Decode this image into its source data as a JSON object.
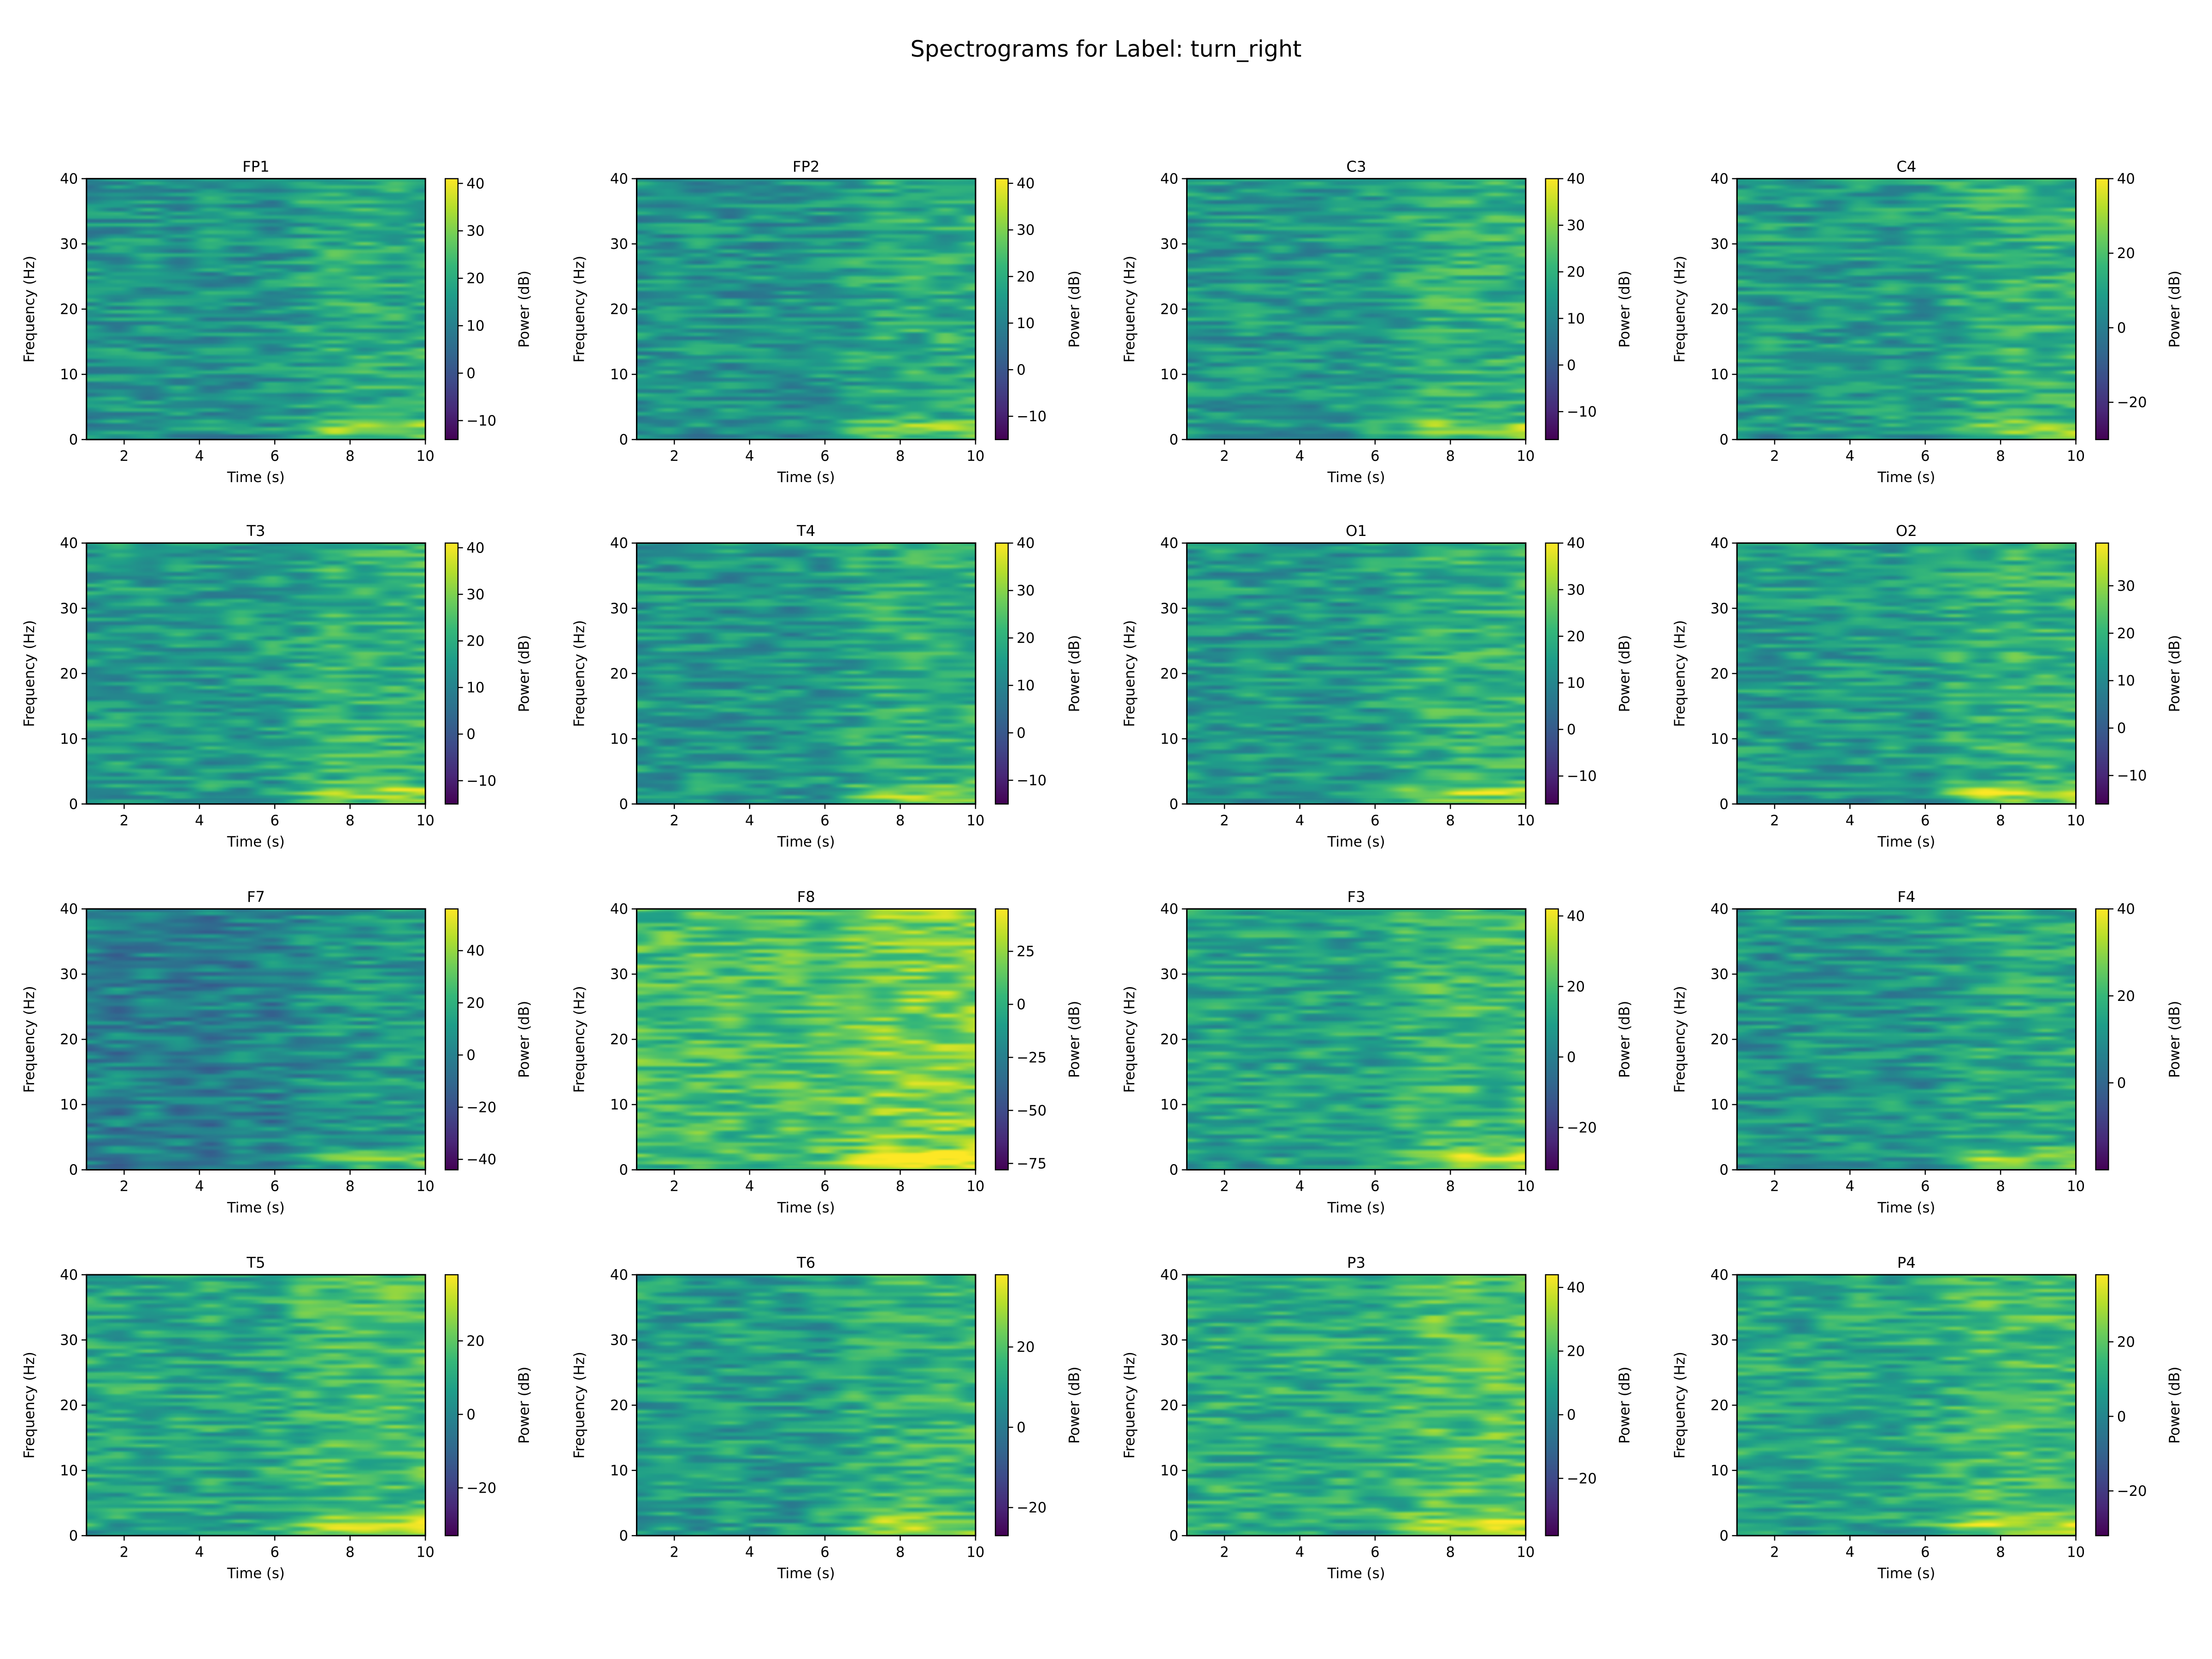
{
  "figure": {
    "title": "Spectrograms for Label: turn_right"
  },
  "colormap": "viridis",
  "chart_data": [
    {
      "type": "heatmap",
      "title": "FP1",
      "xlabel": "Time (s)",
      "ylabel": "Frequency (Hz)",
      "xlim": [
        1,
        10
      ],
      "ylim": [
        0,
        40
      ],
      "xticks": [
        "2",
        "4",
        "6",
        "8",
        "10"
      ],
      "yticks": [
        "0",
        "10",
        "20",
        "30",
        "40"
      ],
      "colorbar": {
        "label": "Power (dB)",
        "ticks": [
          "−10",
          "0",
          "10",
          "20",
          "30",
          "40"
        ],
        "range": [
          -14,
          41
        ]
      }
    },
    {
      "type": "heatmap",
      "title": "FP2",
      "xlabel": "Time (s)",
      "ylabel": "Frequency (Hz)",
      "xlim": [
        1,
        10
      ],
      "ylim": [
        0,
        40
      ],
      "xticks": [
        "2",
        "4",
        "6",
        "8",
        "10"
      ],
      "yticks": [
        "0",
        "10",
        "20",
        "30",
        "40"
      ],
      "colorbar": {
        "label": "Power (dB)",
        "ticks": [
          "−10",
          "0",
          "10",
          "20",
          "30",
          "40"
        ],
        "range": [
          -15,
          41
        ]
      }
    },
    {
      "type": "heatmap",
      "title": "C3",
      "xlabel": "Time (s)",
      "ylabel": "Frequency (Hz)",
      "xlim": [
        1,
        10
      ],
      "ylim": [
        0,
        40
      ],
      "xticks": [
        "2",
        "4",
        "6",
        "8",
        "10"
      ],
      "yticks": [
        "0",
        "10",
        "20",
        "30",
        "40"
      ],
      "colorbar": {
        "label": "Power (dB)",
        "ticks": [
          "−10",
          "0",
          "10",
          "20",
          "30",
          "40"
        ],
        "range": [
          -16,
          40
        ]
      }
    },
    {
      "type": "heatmap",
      "title": "C4",
      "xlabel": "Time (s)",
      "ylabel": "Frequency (Hz)",
      "xlim": [
        1,
        10
      ],
      "ylim": [
        0,
        40
      ],
      "xticks": [
        "2",
        "4",
        "6",
        "8",
        "10"
      ],
      "yticks": [
        "0",
        "10",
        "20",
        "30",
        "40"
      ],
      "colorbar": {
        "label": "Power (dB)",
        "ticks": [
          "−20",
          "0",
          "20",
          "40"
        ],
        "range": [
          -30,
          40
        ]
      }
    },
    {
      "type": "heatmap",
      "title": "T3",
      "xlabel": "Time (s)",
      "ylabel": "Frequency (Hz)",
      "xlim": [
        1,
        10
      ],
      "ylim": [
        0,
        40
      ],
      "xticks": [
        "2",
        "4",
        "6",
        "8",
        "10"
      ],
      "yticks": [
        "0",
        "10",
        "20",
        "30",
        "40"
      ],
      "colorbar": {
        "label": "Power (dB)",
        "ticks": [
          "−10",
          "0",
          "10",
          "20",
          "30",
          "40"
        ],
        "range": [
          -15,
          41
        ]
      }
    },
    {
      "type": "heatmap",
      "title": "T4",
      "xlabel": "Time (s)",
      "ylabel": "Frequency (Hz)",
      "xlim": [
        1,
        10
      ],
      "ylim": [
        0,
        40
      ],
      "xticks": [
        "2",
        "4",
        "6",
        "8",
        "10"
      ],
      "yticks": [
        "0",
        "10",
        "20",
        "30",
        "40"
      ],
      "colorbar": {
        "label": "Power (dB)",
        "ticks": [
          "−10",
          "0",
          "10",
          "20",
          "30",
          "40"
        ],
        "range": [
          -15,
          40
        ]
      }
    },
    {
      "type": "heatmap",
      "title": "O1",
      "xlabel": "Time (s)",
      "ylabel": "Frequency (Hz)",
      "xlim": [
        1,
        10
      ],
      "ylim": [
        0,
        40
      ],
      "xticks": [
        "2",
        "4",
        "6",
        "8",
        "10"
      ],
      "yticks": [
        "0",
        "10",
        "20",
        "30",
        "40"
      ],
      "colorbar": {
        "label": "Power (dB)",
        "ticks": [
          "−10",
          "0",
          "10",
          "20",
          "30",
          "40"
        ],
        "range": [
          -16,
          40
        ]
      }
    },
    {
      "type": "heatmap",
      "title": "O2",
      "xlabel": "Time (s)",
      "ylabel": "Frequency (Hz)",
      "xlim": [
        1,
        10
      ],
      "ylim": [
        0,
        40
      ],
      "xticks": [
        "2",
        "4",
        "6",
        "8",
        "10"
      ],
      "yticks": [
        "0",
        "10",
        "20",
        "30",
        "40"
      ],
      "colorbar": {
        "label": "Power (dB)",
        "ticks": [
          "−10",
          "0",
          "10",
          "20",
          "30"
        ],
        "range": [
          -16,
          39
        ]
      }
    },
    {
      "type": "heatmap",
      "title": "F7",
      "xlabel": "Time (s)",
      "ylabel": "Frequency (Hz)",
      "xlim": [
        1,
        10
      ],
      "ylim": [
        0,
        40
      ],
      "xticks": [
        "2",
        "4",
        "6",
        "8",
        "10"
      ],
      "yticks": [
        "0",
        "10",
        "20",
        "30",
        "40"
      ],
      "colorbar": {
        "label": "Power (dB)",
        "ticks": [
          "−40",
          "−20",
          "0",
          "20",
          "40"
        ],
        "range": [
          -44,
          56
        ]
      }
    },
    {
      "type": "heatmap",
      "title": "F8",
      "xlabel": "Time (s)",
      "ylabel": "Frequency (Hz)",
      "xlim": [
        1,
        10
      ],
      "ylim": [
        0,
        40
      ],
      "xticks": [
        "2",
        "4",
        "6",
        "8",
        "10"
      ],
      "yticks": [
        "0",
        "10",
        "20",
        "30",
        "40"
      ],
      "colorbar": {
        "label": "Power (dB)",
        "ticks": [
          "−75",
          "−50",
          "−25",
          "0",
          "25"
        ],
        "range": [
          -78,
          45
        ]
      }
    },
    {
      "type": "heatmap",
      "title": "F3",
      "xlabel": "Time (s)",
      "ylabel": "Frequency (Hz)",
      "xlim": [
        1,
        10
      ],
      "ylim": [
        0,
        40
      ],
      "xticks": [
        "2",
        "4",
        "6",
        "8",
        "10"
      ],
      "yticks": [
        "0",
        "10",
        "20",
        "30",
        "40"
      ],
      "colorbar": {
        "label": "Power (dB)",
        "ticks": [
          "−20",
          "0",
          "20",
          "40"
        ],
        "range": [
          -32,
          42
        ]
      }
    },
    {
      "type": "heatmap",
      "title": "F4",
      "xlabel": "Time (s)",
      "ylabel": "Frequency (Hz)",
      "xlim": [
        1,
        10
      ],
      "ylim": [
        0,
        40
      ],
      "xticks": [
        "2",
        "4",
        "6",
        "8",
        "10"
      ],
      "yticks": [
        "0",
        "10",
        "20",
        "30",
        "40"
      ],
      "colorbar": {
        "label": "Power (dB)",
        "ticks": [
          "0",
          "20",
          "40"
        ],
        "range": [
          -20,
          40
        ]
      }
    },
    {
      "type": "heatmap",
      "title": "T5",
      "xlabel": "Time (s)",
      "ylabel": "Frequency (Hz)",
      "xlim": [
        1,
        10
      ],
      "ylim": [
        0,
        40
      ],
      "xticks": [
        "2",
        "4",
        "6",
        "8",
        "10"
      ],
      "yticks": [
        "0",
        "10",
        "20",
        "30",
        "40"
      ],
      "colorbar": {
        "label": "Power (dB)",
        "ticks": [
          "−20",
          "0",
          "20"
        ],
        "range": [
          -33,
          38
        ]
      }
    },
    {
      "type": "heatmap",
      "title": "T6",
      "xlabel": "Time (s)",
      "ylabel": "Frequency (Hz)",
      "xlim": [
        1,
        10
      ],
      "ylim": [
        0,
        40
      ],
      "xticks": [
        "2",
        "4",
        "6",
        "8",
        "10"
      ],
      "yticks": [
        "0",
        "10",
        "20",
        "30",
        "40"
      ],
      "colorbar": {
        "label": "Power (dB)",
        "ticks": [
          "−20",
          "0",
          "20"
        ],
        "range": [
          -27,
          38
        ]
      }
    },
    {
      "type": "heatmap",
      "title": "P3",
      "xlabel": "Time (s)",
      "ylabel": "Frequency (Hz)",
      "xlim": [
        1,
        10
      ],
      "ylim": [
        0,
        40
      ],
      "xticks": [
        "2",
        "4",
        "6",
        "8",
        "10"
      ],
      "yticks": [
        "0",
        "10",
        "20",
        "30",
        "40"
      ],
      "colorbar": {
        "label": "Power (dB)",
        "ticks": [
          "−20",
          "0",
          "20",
          "40"
        ],
        "range": [
          -38,
          44
        ]
      }
    },
    {
      "type": "heatmap",
      "title": "P4",
      "xlabel": "Time (s)",
      "ylabel": "Frequency (Hz)",
      "xlim": [
        1,
        10
      ],
      "ylim": [
        0,
        40
      ],
      "xticks": [
        "2",
        "4",
        "6",
        "8",
        "10"
      ],
      "yticks": [
        "0",
        "10",
        "20",
        "30",
        "40"
      ],
      "colorbar": {
        "label": "Power (dB)",
        "ticks": [
          "−20",
          "0",
          "20"
        ],
        "range": [
          -32,
          38
        ]
      }
    }
  ]
}
